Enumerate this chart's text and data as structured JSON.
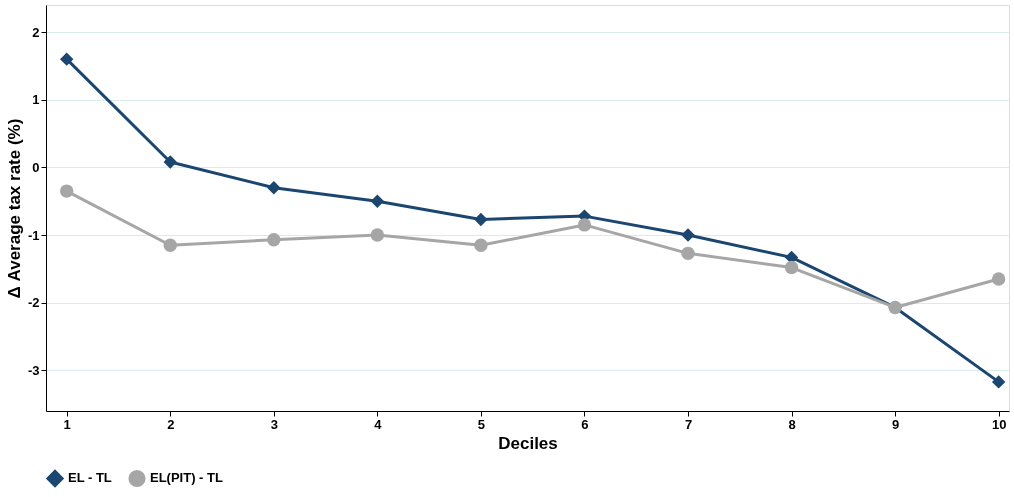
{
  "chart_data": {
    "type": "line",
    "xlabel": "Deciles",
    "ylabel": "Δ Average tax rate (%)",
    "x": [
      1,
      2,
      3,
      4,
      5,
      6,
      7,
      8,
      9,
      10
    ],
    "xlim": [
      0.8,
      10.1
    ],
    "xticks": [
      1,
      2,
      3,
      4,
      5,
      6,
      7,
      8,
      9,
      10
    ],
    "ylim": [
      -3.6,
      2.4
    ],
    "yticks": [
      -3,
      -2,
      -1,
      0,
      1,
      2
    ],
    "grid": "y",
    "legend": "bottom",
    "line_style": "solid",
    "series": [
      {
        "name": "EL - TL",
        "color": "#1b4670",
        "marker": "diamond",
        "values": [
          1.6,
          0.08,
          -0.3,
          -0.5,
          -0.77,
          -0.72,
          -1.0,
          -1.33,
          -2.07,
          -3.17
        ]
      },
      {
        "name": "EL(PIT) - TL",
        "color": "#a6a6a6",
        "marker": "circle",
        "values": [
          -0.35,
          -1.15,
          -1.07,
          -1.0,
          -1.15,
          -0.85,
          -1.27,
          -1.48,
          -2.07,
          -1.65
        ]
      }
    ]
  }
}
